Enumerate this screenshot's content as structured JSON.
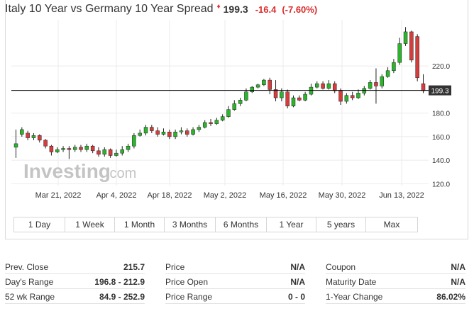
{
  "header": {
    "title": "Italy 10 Year vs Germany 10 Year Spread",
    "price": "199.3",
    "change": "-16.4",
    "change_pct": "(-7.60%)"
  },
  "colors": {
    "up": "#2bb52b",
    "down": "#d63c3c",
    "price_line": "#000000",
    "grid": "#ebebeb"
  },
  "watermark": {
    "brand": "Investing",
    "suffix": ".com"
  },
  "ranges": [
    "1 Day",
    "1 Week",
    "1 Month",
    "3 Months",
    "6 Months",
    "1 Year",
    "5 years",
    "Max"
  ],
  "stats": [
    [
      {
        "label": "Prev. Close",
        "value": "215.7"
      },
      {
        "label": "Day's Range",
        "value": "196.8 - 212.9"
      },
      {
        "label": "52 wk Range",
        "value": "84.9 - 252.9"
      }
    ],
    [
      {
        "label": "Price",
        "value": "N/A"
      },
      {
        "label": "Price Open",
        "value": "N/A"
      },
      {
        "label": "Price Range",
        "value": "0 - 0"
      }
    ],
    [
      {
        "label": "Coupon",
        "value": "N/A"
      },
      {
        "label": "Maturity Date",
        "value": "N/A"
      },
      {
        "label": "1-Year Change",
        "value": "86.02%"
      }
    ]
  ],
  "chart_data": {
    "type": "candlestick",
    "x_tick_labels": [
      "Mar 21, 2022",
      "Apr 4, 2022",
      "Apr 18, 2022",
      "May 2, 2022",
      "May 16, 2022",
      "May 30, 2022",
      "Jun 13, 2022"
    ],
    "y_ticks": [
      120,
      140,
      160,
      180,
      220
    ],
    "ylim": [
      117,
      253
    ],
    "last_price": "199.3",
    "ohlc": [
      [
        151,
        154,
        166,
        142
      ],
      [
        162,
        166,
        168,
        160
      ],
      [
        163,
        159,
        165,
        157
      ],
      [
        159,
        161,
        163,
        157
      ],
      [
        161,
        157,
        162,
        155
      ],
      [
        157,
        152,
        158,
        150
      ],
      [
        152,
        147,
        153,
        144
      ],
      [
        147,
        149,
        151,
        146
      ],
      [
        149,
        150,
        152,
        147
      ],
      [
        150,
        149,
        152,
        141
      ],
      [
        149,
        151,
        153,
        147
      ],
      [
        151,
        149,
        153,
        147
      ],
      [
        149,
        152,
        154,
        147
      ],
      [
        152,
        148,
        153,
        146
      ],
      [
        148,
        145,
        151,
        143
      ],
      [
        145,
        149,
        151,
        143
      ],
      [
        149,
        144,
        150,
        142
      ],
      [
        144,
        146,
        149,
        143
      ],
      [
        146,
        149,
        152,
        144
      ],
      [
        149,
        152,
        154,
        147
      ],
      [
        152,
        161,
        163,
        150
      ],
      [
        161,
        163,
        166,
        160
      ],
      [
        163,
        168,
        170,
        161
      ],
      [
        168,
        165,
        170,
        163
      ],
      [
        165,
        162,
        168,
        160
      ],
      [
        162,
        164,
        167,
        161
      ],
      [
        164,
        160,
        166,
        158
      ],
      [
        160,
        164,
        166,
        158
      ],
      [
        164,
        165,
        168,
        162
      ],
      [
        165,
        162,
        167,
        160
      ],
      [
        162,
        166,
        168,
        161
      ],
      [
        166,
        168,
        170,
        164
      ],
      [
        168,
        172,
        174,
        167
      ],
      [
        172,
        171,
        175,
        169
      ],
      [
        171,
        174,
        176,
        170
      ],
      [
        174,
        177,
        179,
        173
      ],
      [
        177,
        183,
        186,
        176
      ],
      [
        183,
        188,
        191,
        182
      ],
      [
        188,
        191,
        193,
        186
      ],
      [
        191,
        198,
        201,
        190
      ],
      [
        198,
        202,
        203,
        197
      ],
      [
        202,
        204,
        205,
        201
      ],
      [
        204,
        208,
        209,
        203
      ],
      [
        208,
        200,
        210,
        196
      ],
      [
        200,
        193,
        208,
        190
      ],
      [
        193,
        198,
        201,
        190
      ],
      [
        198,
        186,
        200,
        184
      ],
      [
        186,
        193,
        195,
        185
      ],
      [
        193,
        191,
        195,
        190
      ],
      [
        191,
        196,
        198,
        190
      ],
      [
        196,
        202,
        205,
        195
      ],
      [
        202,
        205,
        207,
        201
      ],
      [
        205,
        201,
        207,
        200
      ],
      [
        201,
        205,
        208,
        200
      ],
      [
        205,
        199,
        207,
        197
      ],
      [
        199,
        190,
        201,
        187
      ],
      [
        190,
        195,
        197,
        188
      ],
      [
        195,
        193,
        198,
        191
      ],
      [
        193,
        197,
        200,
        192
      ],
      [
        197,
        201,
        203,
        195
      ],
      [
        201,
        206,
        208,
        200
      ],
      [
        206,
        203,
        218,
        188
      ],
      [
        203,
        211,
        213,
        201
      ],
      [
        211,
        216,
        219,
        210
      ],
      [
        216,
        223,
        226,
        214
      ],
      [
        223,
        239,
        244,
        221
      ],
      [
        239,
        249,
        253,
        237
      ],
      [
        249,
        225,
        250,
        223
      ],
      [
        245,
        210,
        247,
        207
      ],
      [
        205,
        199,
        213,
        197
      ]
    ]
  }
}
